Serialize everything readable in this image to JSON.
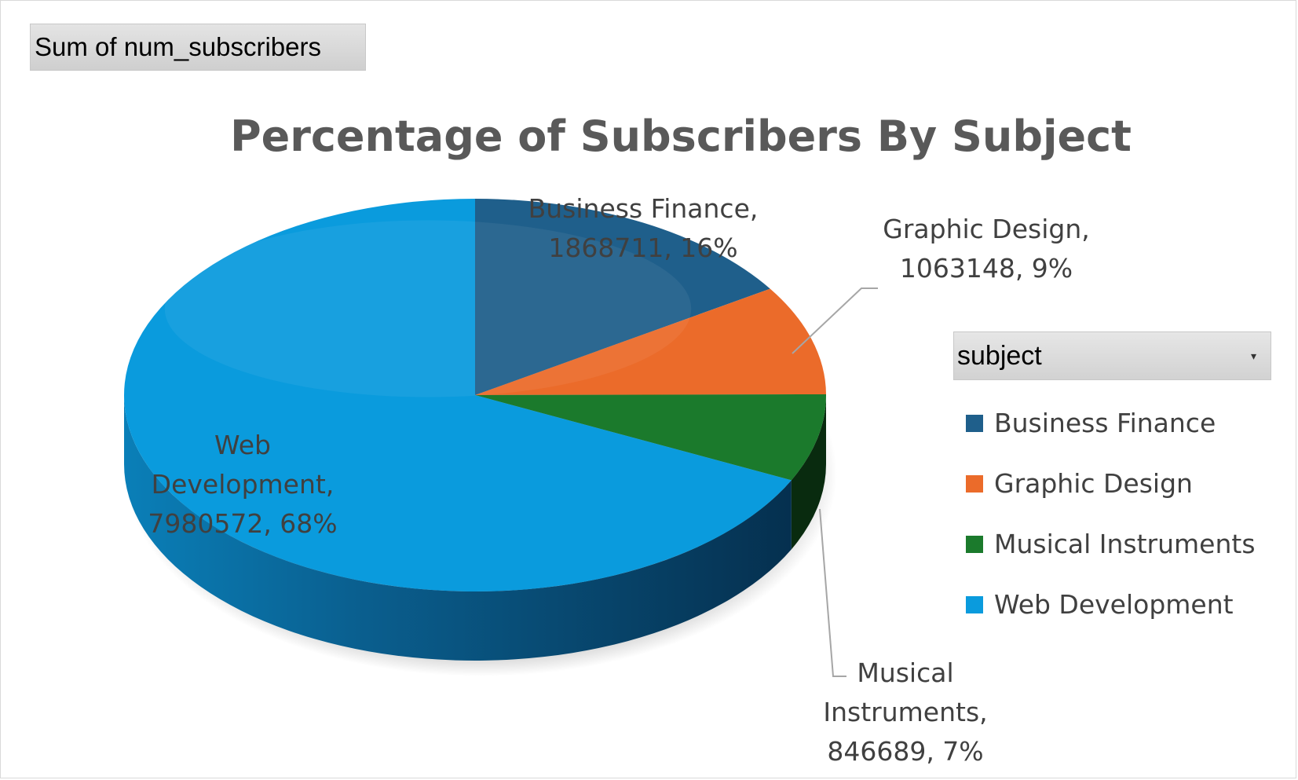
{
  "field_button": {
    "label": "Sum of num_subscribers"
  },
  "legend": {
    "filter_label": "subject",
    "items": [
      {
        "label": "Business Finance",
        "color": "#1F5F8B"
      },
      {
        "label": "Graphic Design",
        "color": "#EB6B2A"
      },
      {
        "label": "Musical Instruments",
        "color": "#1B7A2C"
      },
      {
        "label": "Web Development",
        "color": "#0A9BDD"
      }
    ]
  },
  "chart_data": {
    "type": "pie",
    "title": "Percentage of Subscribers By Subject",
    "style": "3d",
    "legend_position": "right",
    "categories": [
      "Business Finance",
      "Graphic Design",
      "Musical Instruments",
      "Web Development"
    ],
    "values": [
      1868711,
      1063148,
      846689,
      7980572
    ],
    "percent_labels": [
      "16%",
      "9%",
      "7%",
      "68%"
    ],
    "data_labels": [
      [
        "Business Finance,",
        "1868711, 16%"
      ],
      [
        "Graphic Design,",
        "1063148, 9%"
      ],
      [
        "Musical",
        "Instruments,",
        "846689, 7%"
      ],
      [
        "Web",
        "Development,",
        "7980572, 68%"
      ]
    ],
    "colors": [
      "#1F5F8B",
      "#EB6B2A",
      "#1B7A2C",
      "#0A9BDD"
    ]
  }
}
